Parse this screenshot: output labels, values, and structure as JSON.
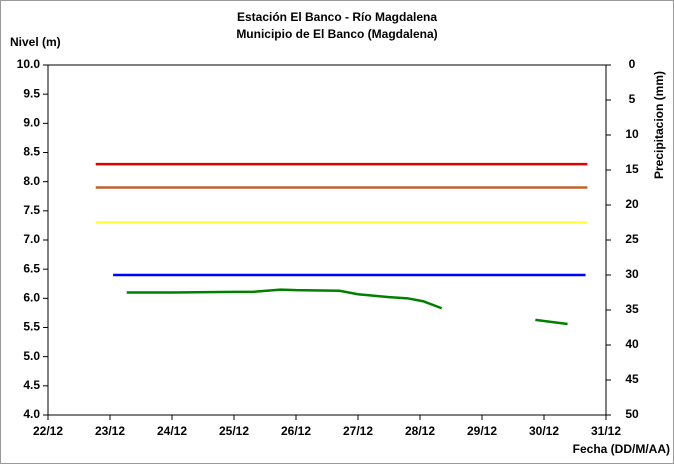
{
  "chart_data": {
    "type": "line",
    "title": "Estación El Banco - Río Magdalena",
    "subtitle": "Municipio de El Banco (Magdalena)",
    "y_label": "Nivel (m)",
    "y2_label": "Precipitacion (mm)",
    "x_label": "Fecha (DD/M/AA)",
    "xlim": [
      22,
      31
    ],
    "xticks": [
      {
        "value": 22,
        "label": "22/12"
      },
      {
        "value": 23,
        "label": "23/12"
      },
      {
        "value": 24,
        "label": "24/12"
      },
      {
        "value": 25,
        "label": "25/12"
      },
      {
        "value": 26,
        "label": "26/12"
      },
      {
        "value": 27,
        "label": "27/12"
      },
      {
        "value": 28,
        "label": "28/12"
      },
      {
        "value": 29,
        "label": "29/12"
      },
      {
        "value": 30,
        "label": "30/12"
      },
      {
        "value": 31,
        "label": "31/12"
      }
    ],
    "ylim": [
      4,
      10
    ],
    "yticks": [
      {
        "value": 4,
        "label": "4.0"
      },
      4.5,
      {
        "value": 5,
        "label": "5.0"
      },
      5.5,
      {
        "value": 6,
        "label": "6.0"
      },
      6.5,
      {
        "value": 7,
        "label": "7.0"
      },
      7.5,
      {
        "value": 8,
        "label": "8.0"
      },
      8.5,
      {
        "value": 9,
        "label": "9.0"
      },
      9.5,
      {
        "value": 10,
        "label": "10.0"
      }
    ],
    "y2lim": [
      50,
      0
    ],
    "y2ticks": [
      0,
      5,
      10,
      15,
      20,
      25,
      30,
      35,
      40,
      45,
      50
    ],
    "series": [
      {
        "color": "#e00000",
        "x": [
          22.77,
          30.7
        ],
        "values": [
          8.3,
          8.3
        ]
      },
      {
        "color": "#c0622d",
        "x": [
          22.77,
          30.7
        ],
        "values": [
          7.9,
          7.9
        ]
      },
      {
        "color": "#ffff40",
        "x": [
          22.77,
          30.7
        ],
        "values": [
          7.3,
          7.3
        ]
      },
      {
        "color": "#0000ff",
        "x": [
          23.05,
          30.67
        ],
        "values": [
          6.4,
          6.4
        ]
      },
      {
        "color": "#008000",
        "x": [
          23.27,
          24.0,
          25.0,
          25.3,
          25.75,
          26.0,
          26.7,
          27.0,
          27.5,
          27.8,
          28.05,
          28.35,
          29.1,
          29.86,
          30.38
        ],
        "values": [
          6.1,
          6.1,
          6.11,
          6.11,
          6.15,
          6.14,
          6.13,
          6.07,
          6.02,
          6.0,
          5.95,
          5.83,
          null,
          5.63,
          5.56
        ]
      }
    ]
  }
}
